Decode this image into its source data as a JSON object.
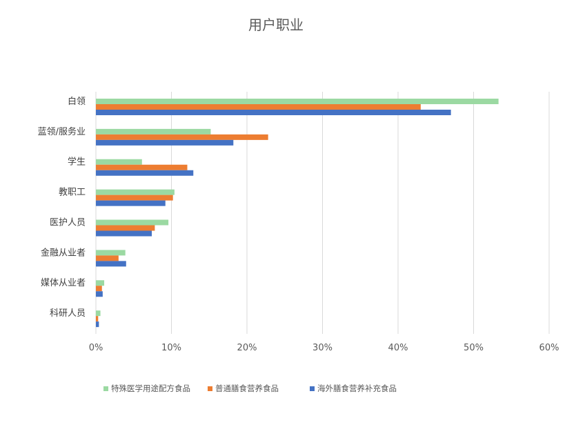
{
  "chart_data": {
    "type": "bar",
    "orientation": "horizontal",
    "title": "用户职业",
    "categories": [
      "白领",
      "蓝领/服务业",
      "学生",
      "教职工",
      "医护人员",
      "金融从业者",
      "媒体从业者",
      "科研人员"
    ],
    "series": [
      {
        "name": "特殊医学用途配方食品",
        "color": "#9bd9a2",
        "values": [
          53.3,
          15.2,
          6.1,
          10.4,
          9.6,
          3.9,
          1.1,
          0.6
        ]
      },
      {
        "name": "普通膳食营养食品",
        "color": "#ed7d31",
        "values": [
          43.0,
          22.8,
          12.1,
          10.2,
          7.8,
          3.0,
          0.8,
          0.3
        ]
      },
      {
        "name": "海外膳食营养补充食品",
        "color": "#4472c4",
        "values": [
          47.0,
          18.2,
          12.9,
          9.2,
          7.4,
          4.0,
          0.9,
          0.4
        ]
      }
    ],
    "xlim": [
      0,
      60
    ],
    "xticks": [
      0,
      10,
      20,
      30,
      40,
      50,
      60
    ],
    "tick_suffix": "%",
    "grid": true,
    "legend_position": "bottom"
  }
}
